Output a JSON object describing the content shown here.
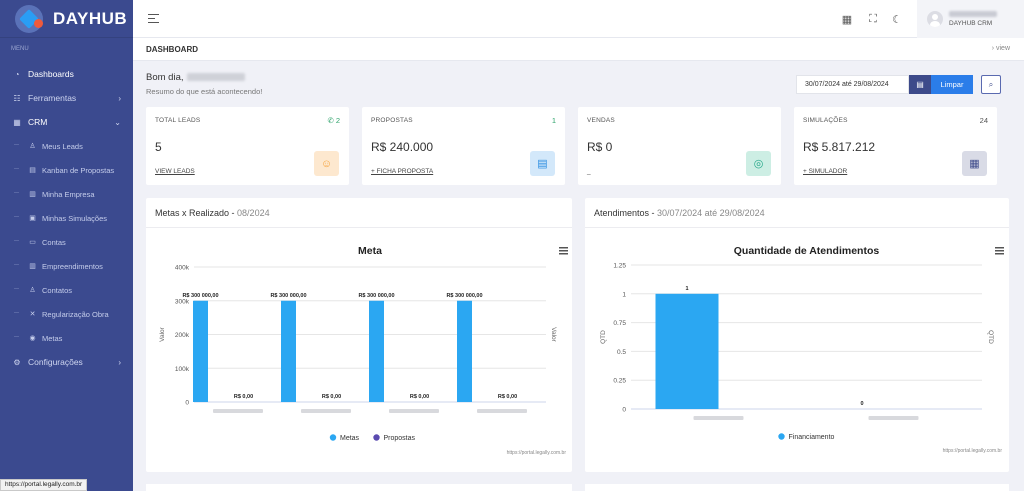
{
  "brand": {
    "name": "DAYHUB"
  },
  "sidebar": {
    "menu_title": "MENU",
    "items": [
      {
        "label": "Dashboards",
        "icon": "gauge-icon"
      },
      {
        "label": "Ferramentas",
        "icon": "tools-icon"
      },
      {
        "label": "CRM",
        "icon": "grid-icon"
      }
    ],
    "crm_sub": [
      {
        "label": "Meus Leads",
        "icon": "user-icon"
      },
      {
        "label": "Kanban de Propostas",
        "icon": "kanban-icon"
      },
      {
        "label": "Minha Empresa",
        "icon": "building-icon"
      },
      {
        "label": "Minhas Simulações",
        "icon": "calculator-icon"
      },
      {
        "label": "Contas",
        "icon": "wallet-icon"
      },
      {
        "label": "Empreendimentos",
        "icon": "building-icon"
      },
      {
        "label": "Contatos",
        "icon": "contacts-icon"
      },
      {
        "label": "Regularização Obra",
        "icon": "tools-icon"
      },
      {
        "label": "Metas",
        "icon": "target-icon"
      }
    ],
    "settings": {
      "label": "Configurações",
      "icon": "gear-icon"
    }
  },
  "user": {
    "role": "DAYHUB CRM"
  },
  "page": {
    "title": "DASHBOARD",
    "crumb": "›  view"
  },
  "greeting": {
    "text": "Bom dia,",
    "subtitle": "Resumo do que está acontecendo!"
  },
  "filter": {
    "date_range": "30/07/2024 até 29/08/2024",
    "clear_label": "Limpar"
  },
  "cards": [
    {
      "label": "TOTAL LEADS",
      "count": "2",
      "value": "5",
      "link": "VIEW LEADS",
      "icon": "user-circle-icon",
      "color": "#f6a23a",
      "bg": "#fde8cf"
    },
    {
      "label": "PROPOSTAS",
      "count": "1",
      "value": "R$ 240.000",
      "link": "+ FICHA PROPOSTA",
      "icon": "document-icon",
      "color": "#2b8de0",
      "bg": "#d3e8fa"
    },
    {
      "label": "VENDAS",
      "count": "",
      "value": "R$ 0",
      "link": "_",
      "icon": "handshake-icon",
      "color": "#26a98a",
      "bg": "#cdeee4"
    },
    {
      "label": "SIMULAÇÕES",
      "count": "24",
      "value": "R$ 5.817.212",
      "link": "+ SIMULADOR",
      "icon": "calculator-icon",
      "color": "#3d4a8a",
      "bg": "#d9dbe6"
    }
  ],
  "panels": {
    "metas": {
      "title": "Metas x Realizado",
      "subtitle": "08/2024"
    },
    "atendimentos": {
      "title": "Atendimentos",
      "subtitle": "30/07/2024 até 29/08/2024"
    }
  },
  "chart_data": [
    {
      "type": "bar",
      "title": "Meta",
      "ylabel": "Valor",
      "ylabel_right": "Valor",
      "ylim": [
        0,
        400000
      ],
      "yticks": [
        "0",
        "100k",
        "200k",
        "300k",
        "400k"
      ],
      "categories": [
        "",
        "",
        "",
        ""
      ],
      "series": [
        {
          "name": "Metas",
          "color": "#2ba7f2",
          "values": [
            300000,
            300000,
            300000,
            300000
          ],
          "labels": [
            "R$ 300 000,00",
            "R$ 300 000,00",
            "R$ 300 000,00",
            "R$ 300 000,00"
          ]
        },
        {
          "name": "Propostas",
          "color": "#5b4bb0",
          "values": [
            0,
            0,
            0,
            0
          ],
          "labels": [
            "R$ 0,00",
            "R$ 0,00",
            "R$ 0,00",
            "R$ 0,00"
          ]
        }
      ],
      "legend": "bottom",
      "credit": "https://portal.legally.com.br"
    },
    {
      "type": "bar",
      "title": "Quantidade de Atendimentos",
      "ylabel": "QTD",
      "ylabel_right": "QTD",
      "ylim": [
        0,
        1.25
      ],
      "yticks": [
        "0",
        "0.25",
        "0.5",
        "0.75",
        "1",
        "1.25"
      ],
      "categories": [
        "",
        ""
      ],
      "series": [
        {
          "name": "Financiamento",
          "color": "#2ba7f2",
          "values": [
            1,
            0
          ],
          "labels": [
            "1",
            "0"
          ]
        }
      ],
      "legend": "bottom",
      "credit": "https://portal.legally.com.br"
    }
  ],
  "status_bar": {
    "url": "https://portal.legally.com.br"
  }
}
